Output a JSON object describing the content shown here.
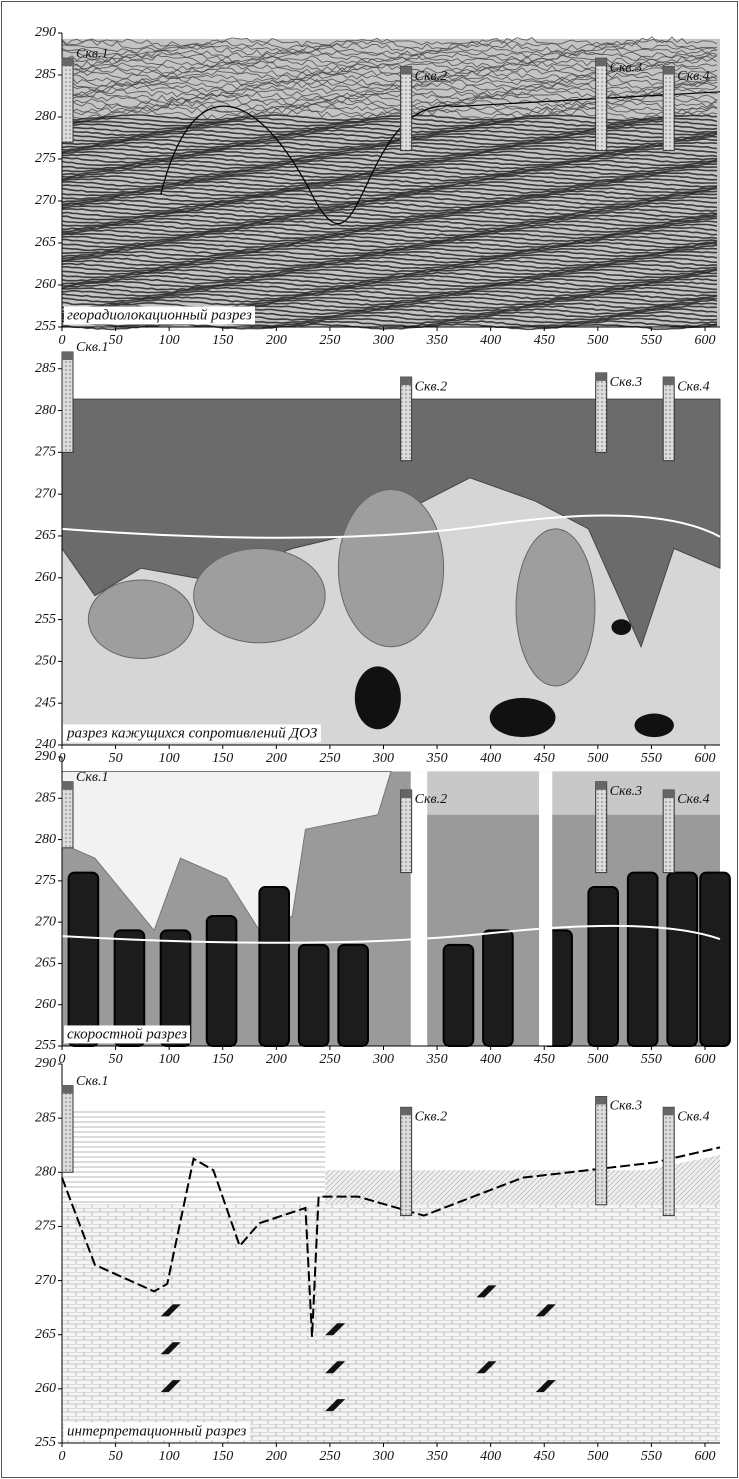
{
  "chart_data": [
    {
      "type": "section",
      "caption": "георадиолокационный разрез",
      "wells": [
        {
          "name": "Скв.1",
          "x": 0,
          "top": 287,
          "bottom": 277
        },
        {
          "name": "Скв.2",
          "x": 316,
          "top": 286,
          "bottom": 276
        },
        {
          "name": "Скв.3",
          "x": 498,
          "top": 287,
          "bottom": 276
        },
        {
          "name": "Скв.4",
          "x": 561,
          "top": 286,
          "bottom": 276
        }
      ],
      "xlim": [
        0,
        614
      ],
      "ylim": [
        255,
        290
      ],
      "xticks": [
        0,
        50,
        100,
        150,
        200,
        250,
        300,
        350,
        400,
        450,
        500,
        550,
        600
      ],
      "yticks": [
        255,
        260,
        265,
        270,
        275,
        280,
        285,
        290
      ]
    },
    {
      "type": "section",
      "caption": "разрез кажущихся сопротивлений ДОЗ",
      "wells": [
        {
          "name": "Скв.1",
          "x": 0,
          "top": 287,
          "bottom": 275
        },
        {
          "name": "Скв.2",
          "x": 316,
          "top": 284,
          "bottom": 274
        },
        {
          "name": "Скв.3",
          "x": 498,
          "top": 284.5,
          "bottom": 275
        },
        {
          "name": "Скв.4",
          "x": 561,
          "top": 284,
          "bottom": 274
        }
      ],
      "xlim": [
        0,
        614
      ],
      "ylim": [
        240,
        287
      ],
      "xticks": [
        0,
        50,
        100,
        150,
        200,
        250,
        300,
        350,
        400,
        450,
        500,
        550,
        600
      ],
      "yticks": [
        240,
        245,
        250,
        255,
        260,
        265,
        270,
        275,
        280,
        285
      ]
    },
    {
      "type": "section",
      "caption": "скоростной разрез",
      "wells": [
        {
          "name": "Скв.1",
          "x": 0,
          "top": 287,
          "bottom": 279
        },
        {
          "name": "Скв.2",
          "x": 316,
          "top": 286,
          "bottom": 276
        },
        {
          "name": "Скв.3",
          "x": 498,
          "top": 287,
          "bottom": 276
        },
        {
          "name": "Скв.4",
          "x": 561,
          "top": 286,
          "bottom": 276
        }
      ],
      "xlim": [
        0,
        614
      ],
      "ylim": [
        255,
        290
      ],
      "xticks": [
        0,
        50,
        100,
        150,
        200,
        250,
        300,
        350,
        400,
        450,
        500,
        550,
        600
      ],
      "yticks": [
        255,
        260,
        265,
        270,
        275,
        280,
        285,
        290
      ]
    },
    {
      "type": "section",
      "caption": "интерпретационный разрез",
      "wells": [
        {
          "name": "Скв.1",
          "x": 0,
          "top": 288,
          "bottom": 280
        },
        {
          "name": "Скв.2",
          "x": 316,
          "top": 286,
          "bottom": 276
        },
        {
          "name": "Скв.3",
          "x": 498,
          "top": 287,
          "bottom": 277
        },
        {
          "name": "Скв.4",
          "x": 561,
          "top": 286,
          "bottom": 276
        }
      ],
      "xlim": [
        0,
        614
      ],
      "ylim": [
        255,
        290
      ],
      "xticks": [
        0,
        50,
        100,
        150,
        200,
        250,
        300,
        350,
        400,
        450,
        500,
        550,
        600
      ],
      "yticks": [
        255,
        260,
        265,
        270,
        275,
        280,
        285,
        290
      ]
    }
  ]
}
